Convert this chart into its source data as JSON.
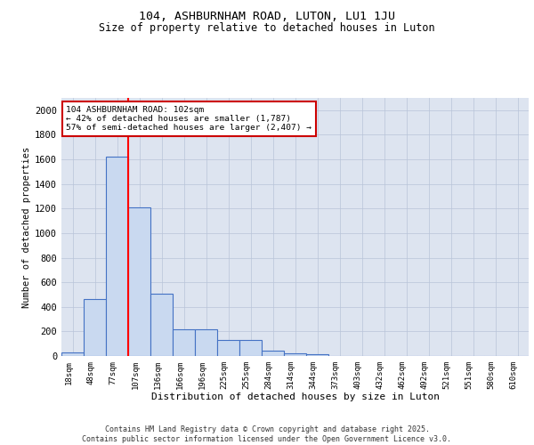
{
  "title1": "104, ASHBURNHAM ROAD, LUTON, LU1 1JU",
  "title2": "Size of property relative to detached houses in Luton",
  "xlabel": "Distribution of detached houses by size in Luton",
  "ylabel": "Number of detached properties",
  "bar_labels": [
    "18sqm",
    "48sqm",
    "77sqm",
    "107sqm",
    "136sqm",
    "166sqm",
    "196sqm",
    "225sqm",
    "255sqm",
    "284sqm",
    "314sqm",
    "344sqm",
    "373sqm",
    "403sqm",
    "432sqm",
    "462sqm",
    "492sqm",
    "521sqm",
    "551sqm",
    "580sqm",
    "610sqm"
  ],
  "bar_values": [
    30,
    460,
    1620,
    1210,
    510,
    215,
    215,
    130,
    130,
    40,
    25,
    15,
    0,
    0,
    0,
    0,
    0,
    0,
    0,
    0,
    0
  ],
  "bar_color": "#c9d9f0",
  "bar_edge_color": "#4472c4",
  "vline_x_index": 2,
  "vline_color": "#ff0000",
  "annotation_title": "104 ASHBURNHAM ROAD: 102sqm",
  "annotation_line1": "← 42% of detached houses are smaller (1,787)",
  "annotation_line2": "57% of semi-detached houses are larger (2,407) →",
  "annotation_box_color": "#ffffff",
  "annotation_box_edge": "#cc0000",
  "ylim": [
    0,
    2100
  ],
  "yticks": [
    0,
    200,
    400,
    600,
    800,
    1000,
    1200,
    1400,
    1600,
    1800,
    2000
  ],
  "bg_color": "#dde4f0",
  "footer1": "Contains HM Land Registry data © Crown copyright and database right 2025.",
  "footer2": "Contains public sector information licensed under the Open Government Licence v3.0."
}
